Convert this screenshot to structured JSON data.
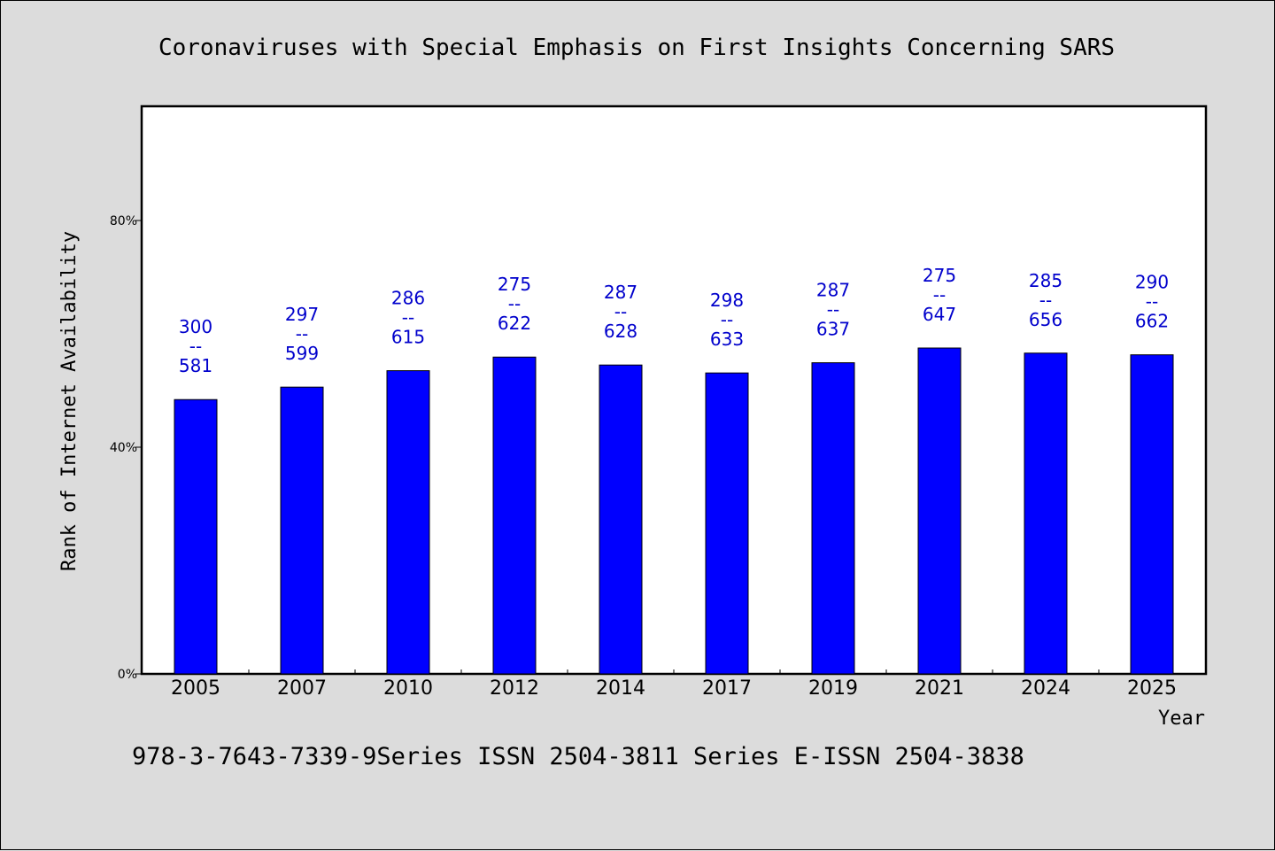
{
  "chart_data": {
    "type": "bar",
    "title": "Coronaviruses with Special Emphasis on First Insights Concerning SARS",
    "xlabel": "Year",
    "ylabel": "Rank of Internet Availability",
    "footer": "978-3-7643-7339-9Series ISSN 2504-3811 Series E-ISSN 2504-3838",
    "categories": [
      "2005",
      "2007",
      "2010",
      "2012",
      "2014",
      "2017",
      "2019",
      "2021",
      "2024",
      "2025"
    ],
    "values": [
      48.4,
      50.6,
      53.5,
      55.9,
      54.5,
      53.1,
      54.9,
      57.5,
      56.6,
      56.3
    ],
    "labels_top": [
      "300",
      "297",
      "286",
      "275",
      "287",
      "298",
      "287",
      "275",
      "285",
      "290"
    ],
    "labels_sep": "--",
    "labels_bottom": [
      "581",
      "599",
      "615",
      "622",
      "628",
      "633",
      "637",
      "647",
      "656",
      "662"
    ],
    "ylim": [
      0,
      100
    ],
    "yticks": [
      0,
      40,
      80
    ],
    "ytick_labels": [
      "0%",
      "40%",
      "80%"
    ],
    "bar_color": "#0000ff",
    "label_color": "#0000cc",
    "grid": false
  }
}
